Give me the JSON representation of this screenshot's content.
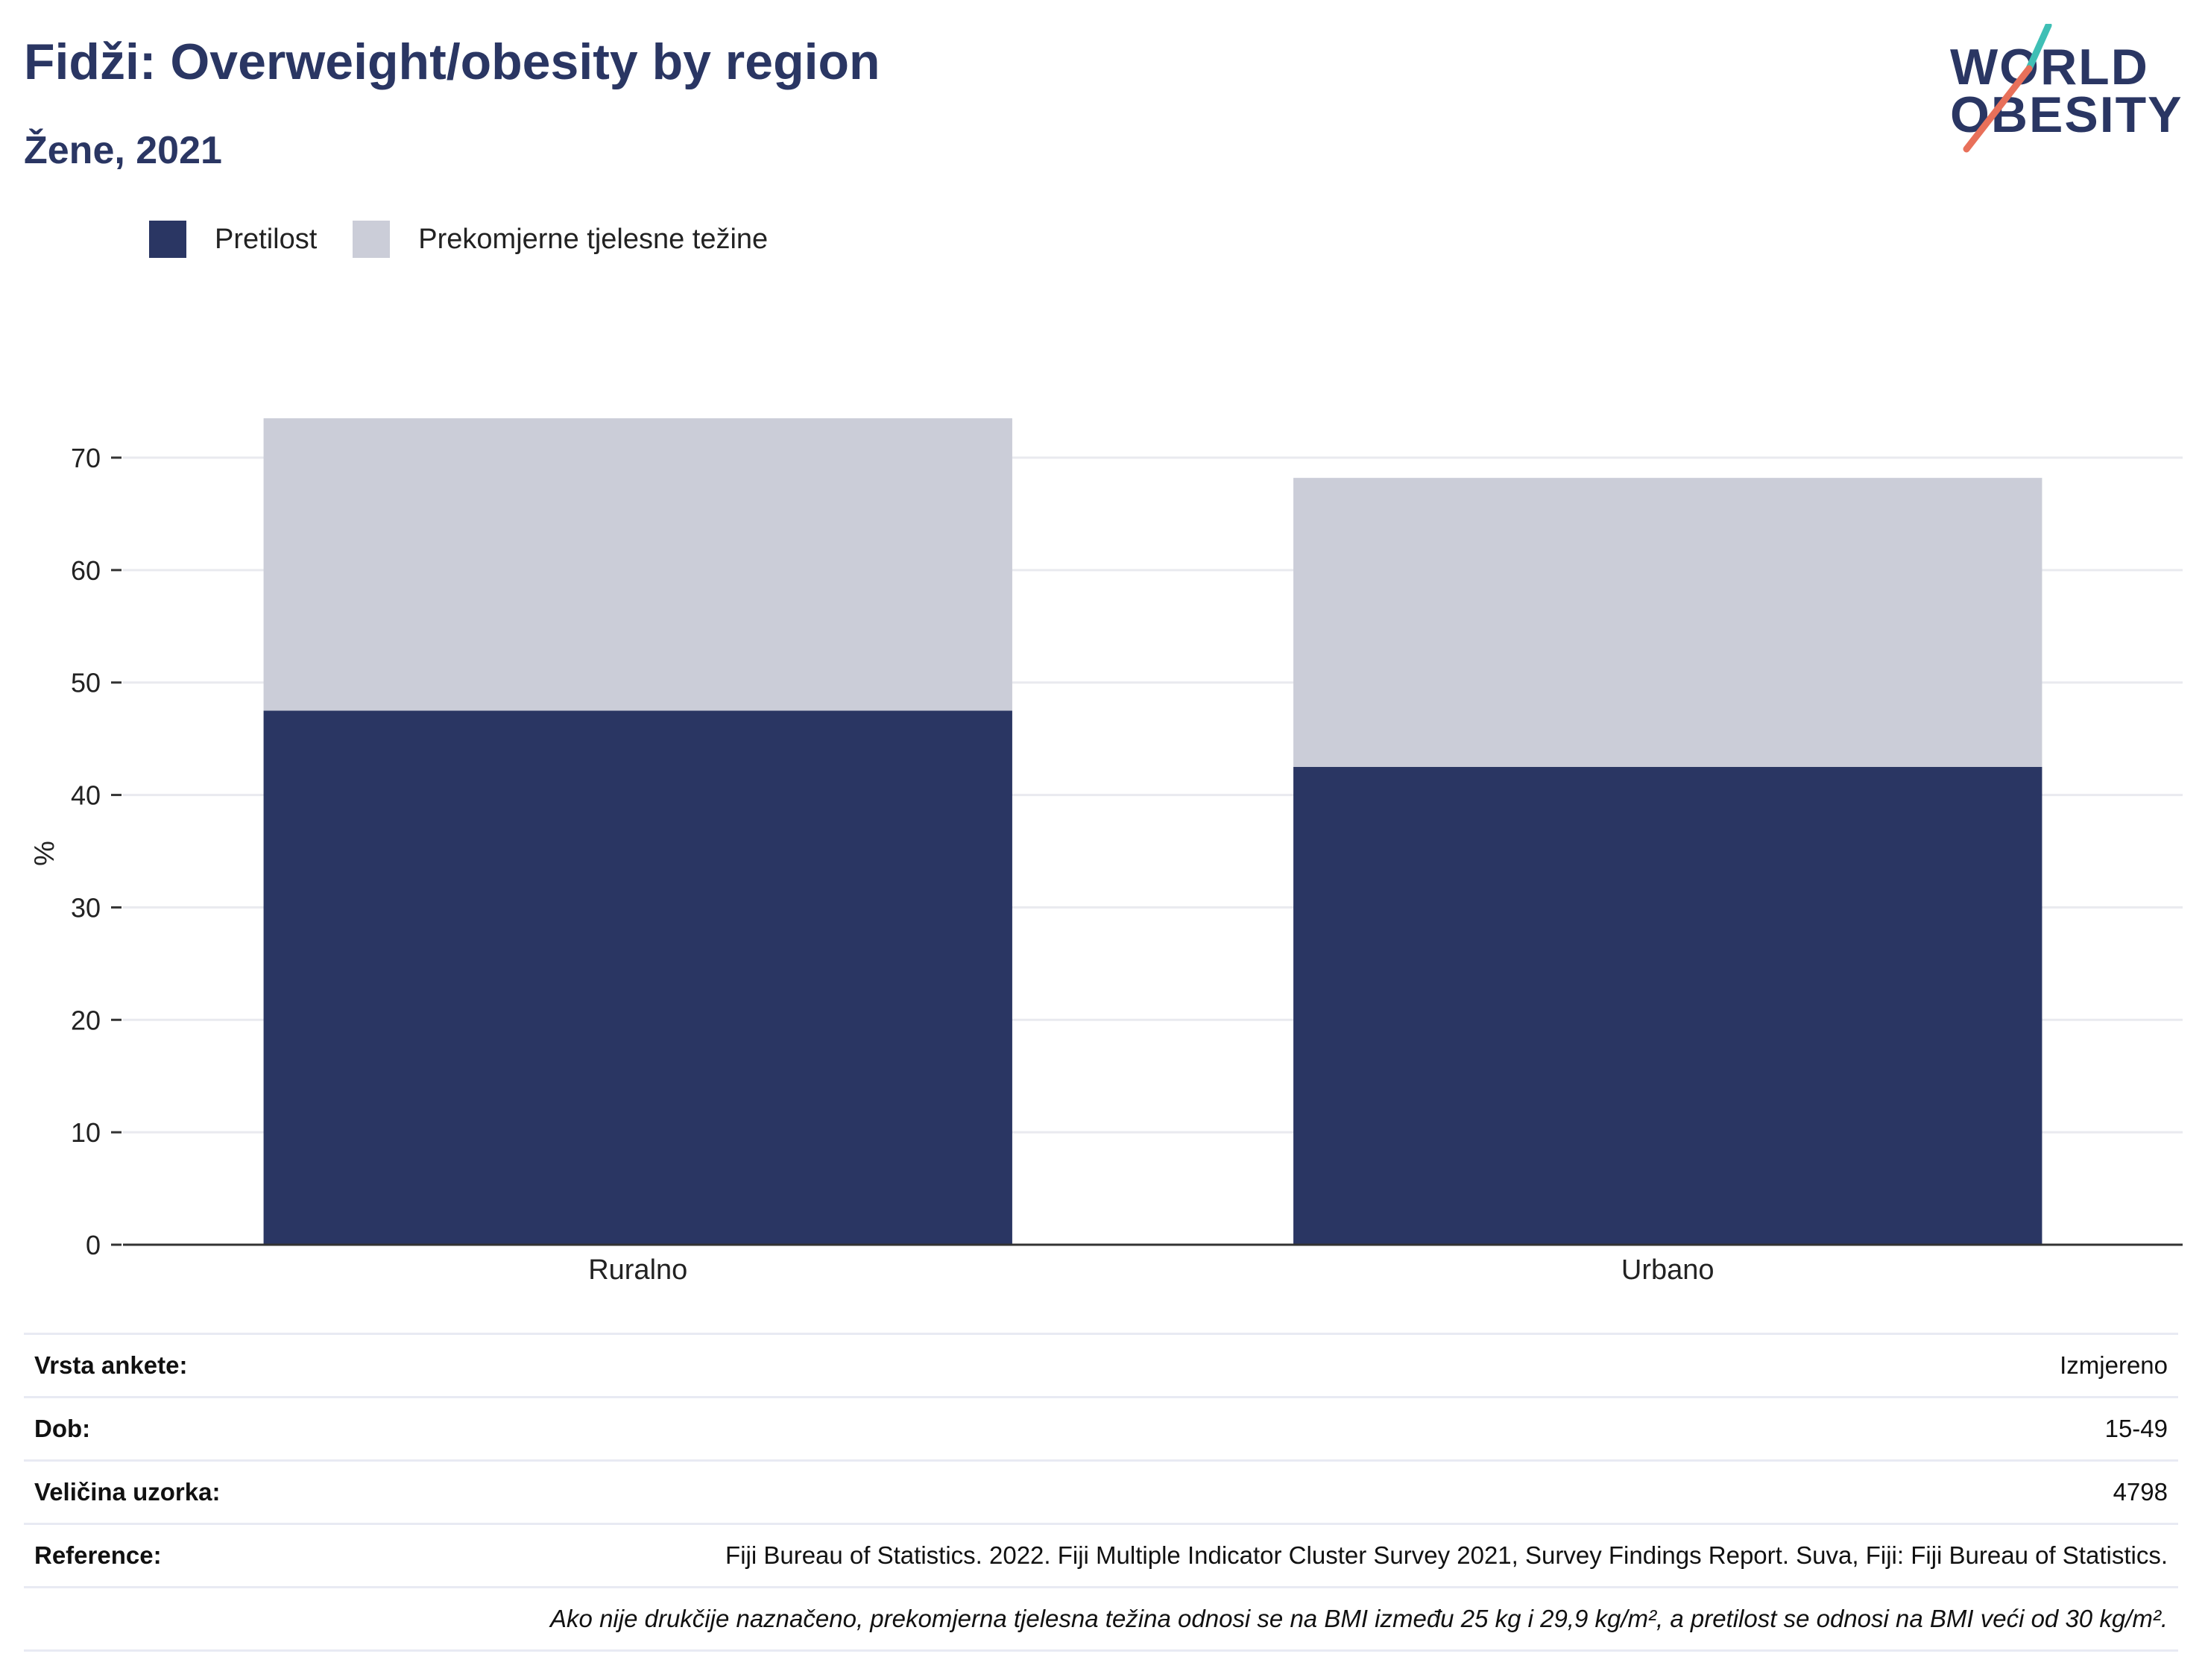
{
  "header": {
    "title": "Fidži: Overweight/obesity by region",
    "subtitle": "Žene, 2021"
  },
  "logo": {
    "line1": "WORLD",
    "line2": "OBESITY",
    "accent_colors": [
      "#3fbfb5",
      "#e8705a"
    ]
  },
  "legend": [
    {
      "label": "Pretilost",
      "color": "#2a3663"
    },
    {
      "label": "Prekomjerne tjelesne težine",
      "color": "#cbcdd8"
    }
  ],
  "chart_data": {
    "type": "bar",
    "stacked": true,
    "categories": [
      "Ruralno",
      "Urbano"
    ],
    "series": [
      {
        "name": "Pretilost",
        "values": [
          47.5,
          42.5
        ],
        "color": "#2a3663"
      },
      {
        "name": "Prekomjerne tjelesne težine",
        "values": [
          26.0,
          25.7
        ],
        "color": "#cbcdd8"
      }
    ],
    "ylabel": "%",
    "xlabel": "",
    "ylim": [
      0,
      75
    ],
    "yticks": [
      0,
      10,
      20,
      30,
      40,
      50,
      60,
      70
    ],
    "grid": true
  },
  "info": {
    "rows": [
      {
        "label": "Vrsta ankete:",
        "value": "Izmjereno"
      },
      {
        "label": "Dob:",
        "value": "15-49"
      },
      {
        "label": "Veličina uzorka:",
        "value": "4798"
      },
      {
        "label": "Reference:",
        "value": "Fiji Bureau of Statistics. 2022. Fiji Multiple Indicator Cluster Survey 2021, Survey Findings Report. Suva, Fiji: Fiji Bureau of Statistics."
      }
    ],
    "note": "Ako nije drukčije naznačeno, prekomjerna tjelesna težina odnosi se na BMI između 25 kg i 29,9 kg/m², a pretilost se odnosi na BMI veći od 30 kg/m²."
  }
}
